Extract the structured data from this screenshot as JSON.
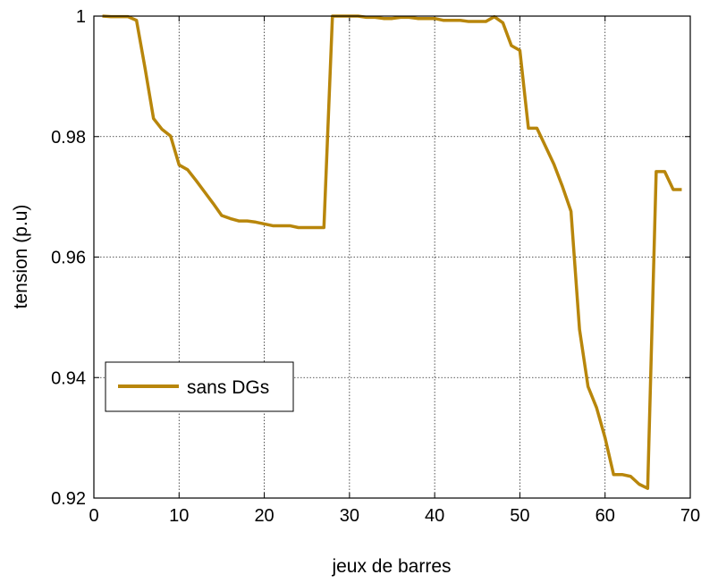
{
  "chart_data": {
    "type": "line",
    "title": "",
    "xlabel": "jeux de barres",
    "ylabel": "tension (p.u)",
    "xlim": [
      0,
      70
    ],
    "ylim": [
      0.92,
      1.0
    ],
    "xticks": [
      0,
      10,
      20,
      30,
      40,
      50,
      60,
      70
    ],
    "yticks": [
      0.92,
      0.94,
      0.96,
      0.98,
      1.0
    ],
    "xtick_labels": [
      "0",
      "10",
      "20",
      "30",
      "40",
      "50",
      "60",
      "70"
    ],
    "ytick_labels": [
      "0.92",
      "0.94",
      "0.96",
      "0.98",
      "1"
    ],
    "grid": true,
    "legend_position": "lower-left",
    "series": [
      {
        "name": "sans DGs",
        "color": "#B8860B",
        "x": [
          1,
          2,
          3,
          4,
          5,
          6,
          7,
          8,
          9,
          10,
          11,
          12,
          13,
          14,
          15,
          16,
          17,
          18,
          19,
          20,
          21,
          22,
          23,
          24,
          25,
          26,
          27,
          28,
          29,
          30,
          31,
          32,
          33,
          34,
          35,
          36,
          37,
          38,
          39,
          40,
          41,
          42,
          43,
          44,
          45,
          46,
          47,
          48,
          49,
          50,
          51,
          52,
          53,
          54,
          55,
          56,
          57,
          58,
          59,
          60,
          61,
          62,
          63,
          64,
          65,
          66,
          67,
          68,
          69
        ],
        "y": [
          1.0,
          0.9999,
          0.9999,
          0.9999,
          0.9993,
          0.9914,
          0.983,
          0.9812,
          0.9801,
          0.9753,
          0.9745,
          0.9727,
          0.9708,
          0.9689,
          0.9669,
          0.9664,
          0.966,
          0.966,
          0.9658,
          0.9655,
          0.9652,
          0.9652,
          0.9652,
          0.9649,
          0.9649,
          0.9649,
          0.9649,
          1.0,
          1.0,
          1.0,
          1.0,
          0.9998,
          0.9998,
          0.9996,
          0.9996,
          0.9998,
          0.9998,
          0.9996,
          0.9996,
          0.9996,
          0.9993,
          0.9993,
          0.9993,
          0.9991,
          0.9991,
          0.9991,
          0.9999,
          0.9989,
          0.9951,
          0.9943,
          0.9814,
          0.9814,
          0.9784,
          0.9754,
          0.9717,
          0.9676,
          0.948,
          0.9385,
          0.935,
          0.93,
          0.9239,
          0.9239,
          0.9236,
          0.9223,
          0.9216,
          0.9742,
          0.9742,
          0.9712,
          0.9712
        ]
      }
    ]
  }
}
